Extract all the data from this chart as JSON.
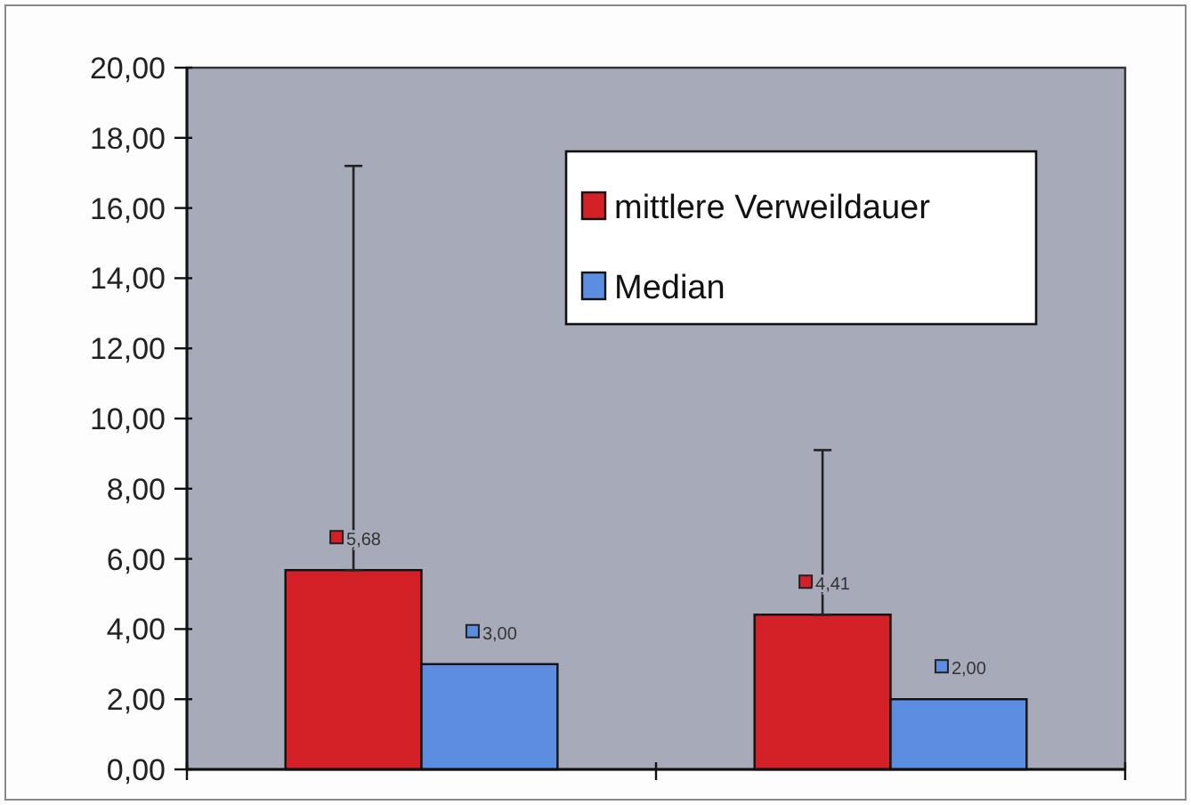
{
  "chart_data": {
    "type": "bar",
    "categories": [
      null,
      null
    ],
    "series": [
      {
        "name": "mittlere Verweildauer",
        "color": "#d42027",
        "values": [
          5.68,
          4.41
        ],
        "errors": [
          [
            5.68,
            17.2
          ],
          [
            4.41,
            9.1
          ]
        ],
        "value_labels": [
          "5,68",
          "4,41"
        ]
      },
      {
        "name": "Median",
        "color": "#5b8de0",
        "values": [
          3.0,
          2.0
        ],
        "value_labels": [
          "3,00",
          "2,00"
        ]
      }
    ],
    "ylim": [
      0,
      20
    ],
    "yticks": [
      {
        "value": 0,
        "label": "0,00"
      },
      {
        "value": 2,
        "label": "2,00"
      },
      {
        "value": 4,
        "label": "4,00"
      },
      {
        "value": 6,
        "label": "6,00"
      },
      {
        "value": 8,
        "label": "8,00"
      },
      {
        "value": 10,
        "label": "10,00"
      },
      {
        "value": 12,
        "label": "12,00"
      },
      {
        "value": 14,
        "label": "14,00"
      },
      {
        "value": 16,
        "label": "16,00"
      },
      {
        "value": 18,
        "label": "18,00"
      },
      {
        "value": 20,
        "label": "20,00"
      }
    ],
    "grid": false,
    "legend": "top right"
  }
}
